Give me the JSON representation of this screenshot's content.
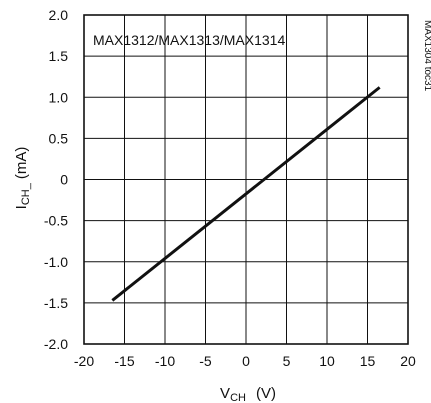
{
  "chart_data": {
    "type": "line",
    "title": "MAX1312/MAX1313/MAX1314",
    "side_note": "MAX1304 toc31",
    "xlabel_main": "V",
    "xlabel_sub": "CH",
    "xlabel_unit": "(V)",
    "ylabel_main": "I",
    "ylabel_sub": "CH_",
    "ylabel_unit": "(mA)",
    "xlim": [
      -20,
      20
    ],
    "ylim": [
      -2.0,
      2.0
    ],
    "x_ticks": [
      -20,
      -15,
      -10,
      -5,
      0,
      5,
      10,
      15,
      20
    ],
    "x_tick_labels": [
      "-20",
      "-15",
      "-10",
      "-5",
      "0",
      "5",
      "10",
      "15",
      "20"
    ],
    "y_ticks": [
      -2.0,
      -1.5,
      -1.0,
      -0.5,
      0,
      0.5,
      1.0,
      1.5,
      2.0
    ],
    "y_tick_labels": [
      "-2.0",
      "-1.5",
      "-1.0",
      "-0.5",
      "0",
      "0.5",
      "1.0",
      "1.5",
      "2.0"
    ],
    "grid": true,
    "series": [
      {
        "color": "#111111",
        "x": [
          -16.5,
          16.5
        ],
        "y": [
          -1.47,
          1.12
        ]
      }
    ]
  }
}
